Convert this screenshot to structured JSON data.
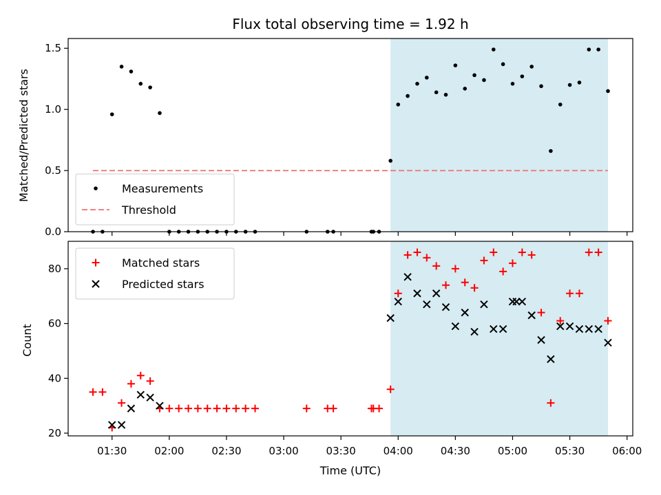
{
  "chart_data": [
    {
      "type": "scatter",
      "title": "Flux total observing time = 1.92 h",
      "xlabel": "",
      "ylabel": "Matched/Predicted stars",
      "ylim": [
        0,
        1.58
      ],
      "yticks": [
        "0.0",
        "0.5",
        "1.0",
        "1.5"
      ],
      "ytick_values": [
        0,
        0.5,
        1.0,
        1.5
      ],
      "legend_position": "lower-left",
      "series": [
        {
          "name": "Measurements",
          "marker": "dot",
          "color": "#000000",
          "x": [
            "01:20",
            "01:25",
            "01:30",
            "01:35",
            "01:40",
            "01:45",
            "01:50",
            "01:55",
            "02:00",
            "02:05",
            "02:10",
            "02:15",
            "02:20",
            "02:25",
            "02:30",
            "02:35",
            "02:40",
            "02:45",
            "03:12",
            "03:23",
            "03:26",
            "03:46",
            "03:47",
            "03:50",
            "03:56",
            "04:00",
            "04:05",
            "04:10",
            "04:15",
            "04:20",
            "04:25",
            "04:30",
            "04:35",
            "04:40",
            "04:45",
            "04:50",
            "04:55",
            "05:00",
            "05:05",
            "05:10",
            "05:15",
            "05:20",
            "05:25",
            "05:30",
            "05:35",
            "05:40",
            "05:45",
            "05:50"
          ],
          "values": [
            0,
            0,
            0.96,
            1.35,
            1.31,
            1.21,
            1.18,
            0.97,
            0,
            0,
            0,
            0,
            0,
            0,
            0,
            0,
            0,
            0,
            0,
            0,
            0,
            0,
            0,
            0,
            0.58,
            1.04,
            1.11,
            1.21,
            1.26,
            1.14,
            1.12,
            1.36,
            1.17,
            1.28,
            1.24,
            1.49,
            1.37,
            1.21,
            1.27,
            1.35,
            1.19,
            0.66,
            1.04,
            1.2,
            1.22,
            1.49,
            1.49,
            1.15
          ]
        },
        {
          "name": "Threshold",
          "style": "dashed",
          "color": "#f08080",
          "x": [
            "01:20",
            "05:50"
          ],
          "values": [
            0.5,
            0.5
          ]
        }
      ],
      "shaded_region": {
        "x": [
          "03:56",
          "05:50"
        ],
        "color": "#add8e6"
      }
    },
    {
      "type": "scatter",
      "xlabel": "Time (UTC)",
      "ylabel": "Count",
      "ylim": [
        19,
        90
      ],
      "yticks": [
        "20",
        "40",
        "60",
        "80"
      ],
      "ytick_values": [
        20,
        40,
        60,
        80
      ],
      "xlim": [
        "01:07",
        "06:03"
      ],
      "xticks": [
        "01:30",
        "02:00",
        "02:30",
        "03:00",
        "03:30",
        "04:00",
        "04:30",
        "05:00",
        "05:30",
        "06:00"
      ],
      "legend_position": "top-left",
      "series": [
        {
          "name": "Matched stars",
          "marker": "plus",
          "color": "#ff0000",
          "x": [
            "01:20",
            "01:25",
            "01:30",
            "01:35",
            "01:40",
            "01:45",
            "01:50",
            "01:55",
            "02:00",
            "02:05",
            "02:10",
            "02:15",
            "02:20",
            "02:25",
            "02:30",
            "02:35",
            "02:40",
            "02:45",
            "03:12",
            "03:23",
            "03:26",
            "03:46",
            "03:47",
            "03:50",
            "03:56",
            "04:00",
            "04:05",
            "04:10",
            "04:15",
            "04:20",
            "04:25",
            "04:30",
            "04:35",
            "04:40",
            "04:45",
            "04:50",
            "04:55",
            "05:00",
            "05:05",
            "05:10",
            "05:15",
            "05:20",
            "05:25",
            "05:30",
            "05:35",
            "05:40",
            "05:45",
            "05:50"
          ],
          "values": [
            35,
            35,
            22,
            31,
            38,
            41,
            39,
            29,
            29,
            29,
            29,
            29,
            29,
            29,
            29,
            29,
            29,
            29,
            29,
            29,
            29,
            29,
            29,
            29,
            36,
            71,
            85,
            86,
            84,
            81,
            74,
            80,
            75,
            73,
            83,
            86,
            79,
            82,
            86,
            85,
            64,
            31,
            61,
            71,
            71,
            86,
            86,
            61
          ]
        },
        {
          "name": "Predicted stars",
          "marker": "x",
          "color": "#000000",
          "x": [
            "01:30",
            "01:35",
            "01:40",
            "01:45",
            "01:50",
            "01:55",
            "03:56",
            "04:00",
            "04:05",
            "04:10",
            "04:15",
            "04:20",
            "04:25",
            "04:30",
            "04:35",
            "04:40",
            "04:45",
            "04:50",
            "04:55",
            "05:00",
            "05:02",
            "05:05",
            "05:10",
            "05:15",
            "05:20",
            "05:25",
            "05:30",
            "05:35",
            "05:40",
            "05:45",
            "05:50"
          ],
          "values": [
            23,
            23,
            29,
            34,
            33,
            30,
            62,
            68,
            77,
            71,
            67,
            71,
            66,
            59,
            64,
            57,
            67,
            58,
            58,
            68,
            68,
            68,
            63,
            54,
            47,
            59,
            59,
            58,
            58,
            58,
            53
          ]
        }
      ],
      "shaded_region": {
        "x": [
          "03:56",
          "05:50"
        ],
        "color": "#add8e6"
      }
    }
  ]
}
